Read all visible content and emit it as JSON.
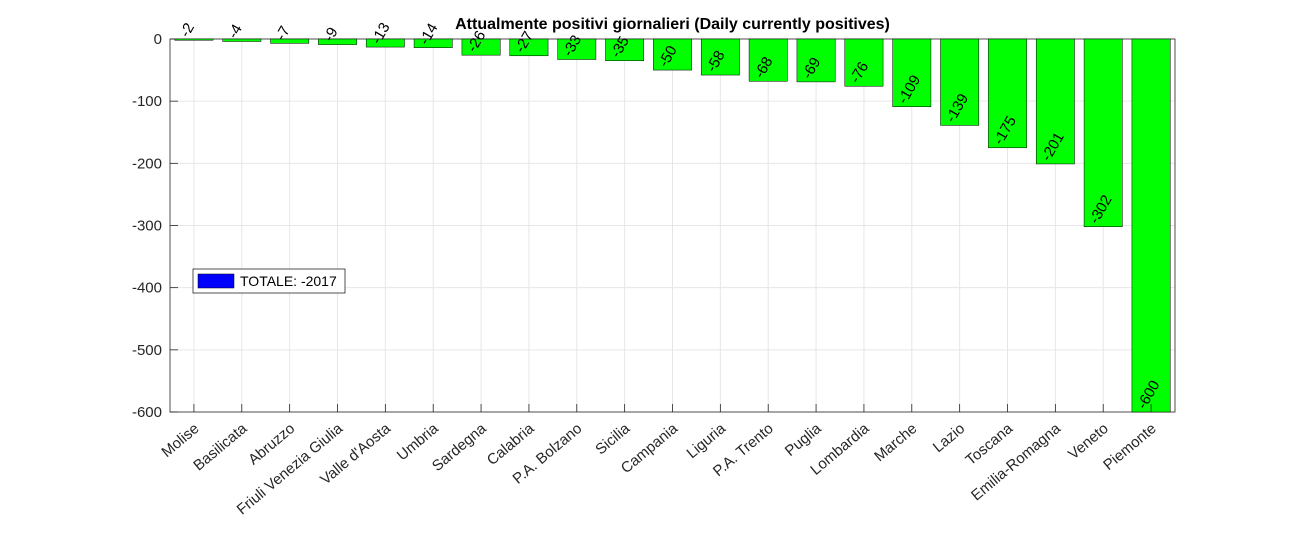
{
  "chart_data": {
    "type": "bar",
    "title": "Attualmente positivi giornalieri (Daily currently positives)",
    "xlabel": "",
    "ylabel": "",
    "ylim": [
      -600,
      0
    ],
    "yticks": [
      0,
      -100,
      -200,
      -300,
      -400,
      -500,
      -600
    ],
    "grid": true,
    "categories": [
      "Molise",
      "Basilicata",
      "Abruzzo",
      "Friuli Venezia Giulia",
      "Valle d'Aosta",
      "Umbria",
      "Sardegna",
      "Calabria",
      "P.A. Bolzano",
      "Sicilia",
      "Campania",
      "Liguria",
      "P.A. Trento",
      "Puglia",
      "Lombardia",
      "Marche",
      "Lazio",
      "Toscana",
      "Emilia-Romagna",
      "Veneto",
      "Piemonte"
    ],
    "values": [
      -2,
      -4,
      -7,
      -9,
      -13,
      -14,
      -26,
      -27,
      -33,
      -35,
      -50,
      -58,
      -68,
      -69,
      -76,
      -109,
      -139,
      -175,
      -201,
      -302,
      -600
    ],
    "bar_color": "#00ff00",
    "legend": {
      "placement": "left",
      "entries": [
        {
          "label": "TOTALE: -2017",
          "color": "#0000ff"
        }
      ]
    }
  }
}
